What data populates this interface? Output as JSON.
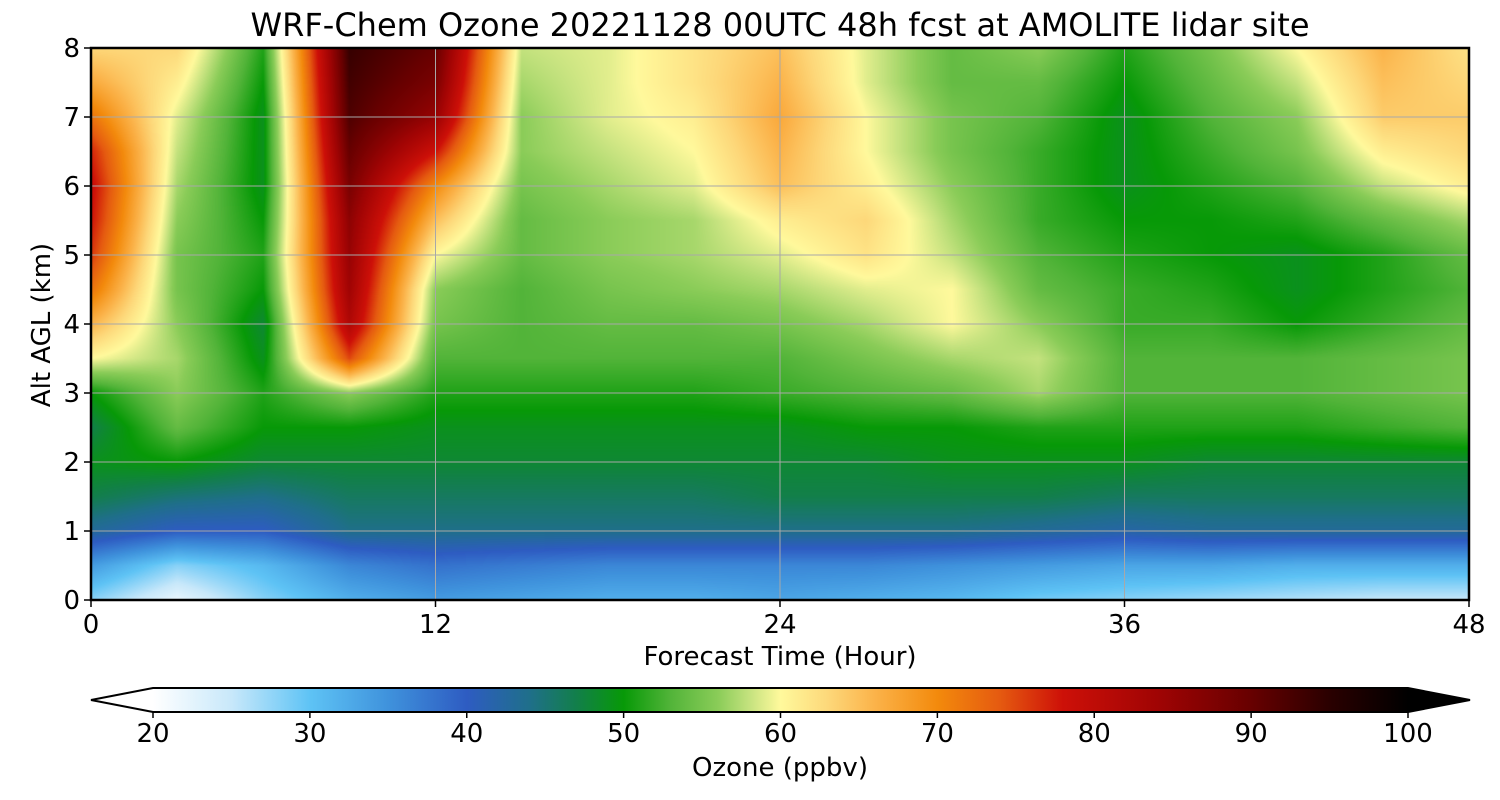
{
  "chart_data": {
    "type": "heatmap",
    "title": "WRF-Chem Ozone  20221128 00UTC 48h fcst at AMOLITE lidar site",
    "xlabel": "Forecast Time (Hour)",
    "ylabel": "Alt AGL (km)",
    "xlim": [
      0,
      48
    ],
    "ylim": [
      0,
      8
    ],
    "xticks": [
      "0",
      "12",
      "24",
      "36",
      "48"
    ],
    "yticks": [
      "0",
      "1",
      "2",
      "3",
      "4",
      "5",
      "6",
      "7",
      "8"
    ],
    "grid": true,
    "x": [
      0,
      3,
      6,
      9,
      12,
      15,
      18,
      21,
      24,
      27,
      30,
      33,
      36,
      39,
      42,
      45,
      48
    ],
    "y": [
      0,
      0.5,
      1,
      1.5,
      2,
      2.5,
      3,
      3.5,
      4,
      4.5,
      5,
      5.5,
      6,
      6.5,
      7,
      7.5,
      8
    ],
    "z": [
      [
        28,
        22,
        28,
        32,
        34,
        33,
        32,
        32,
        33,
        32,
        31,
        29,
        28,
        27,
        26,
        25,
        25
      ],
      [
        34,
        28,
        31,
        36,
        38,
        37,
        36,
        36,
        36,
        36,
        35,
        34,
        33,
        33,
        32,
        32,
        32
      ],
      [
        43,
        40,
        40,
        44,
        44,
        44,
        44,
        44,
        44,
        44,
        44,
        43,
        42,
        43,
        43,
        43,
        43
      ],
      [
        47,
        45,
        44,
        46,
        46,
        46,
        46,
        46,
        47,
        47,
        47,
        47,
        46,
        46,
        46,
        46,
        46
      ],
      [
        49,
        50,
        48,
        48,
        48,
        48,
        48,
        48,
        48,
        48,
        49,
        49,
        49,
        48,
        48,
        48,
        48
      ],
      [
        47,
        54,
        50,
        50,
        49,
        49,
        49,
        49,
        49,
        50,
        50,
        51,
        51,
        51,
        51,
        52,
        53
      ],
      [
        50,
        56,
        51,
        56,
        51,
        51,
        51,
        51,
        52,
        53,
        54,
        57,
        53,
        53,
        53,
        54,
        55
      ],
      [
        60,
        57,
        49,
        75,
        53,
        53,
        53,
        53,
        53,
        55,
        57,
        58,
        53,
        53,
        53,
        54,
        55
      ],
      [
        66,
        56,
        48,
        82,
        55,
        53,
        54,
        54,
        55,
        57,
        60,
        56,
        52,
        52,
        50,
        52,
        54
      ],
      [
        72,
        55,
        50,
        84,
        56,
        53,
        55,
        56,
        57,
        59,
        60,
        54,
        52,
        51,
        49,
        51,
        53
      ],
      [
        76,
        55,
        51,
        85,
        60,
        54,
        56,
        57,
        59,
        62,
        58,
        53,
        51,
        50,
        49,
        51,
        54
      ],
      [
        78,
        56,
        50,
        86,
        65,
        54,
        56,
        57,
        61,
        63,
        57,
        52,
        50,
        50,
        51,
        54,
        57
      ],
      [
        79,
        57,
        49,
        88,
        70,
        55,
        57,
        59,
        65,
        61,
        56,
        52,
        49,
        51,
        53,
        58,
        61
      ],
      [
        77,
        58,
        49,
        90,
        78,
        56,
        58,
        60,
        66,
        60,
        55,
        52,
        49,
        52,
        55,
        61,
        63
      ],
      [
        72,
        59,
        49,
        92,
        85,
        56,
        59,
        61,
        67,
        60,
        55,
        53,
        49,
        53,
        56,
        64,
        64
      ],
      [
        67,
        61,
        50,
        93,
        88,
        57,
        59,
        62,
        66,
        59,
        54,
        54,
        50,
        54,
        58,
        65,
        63
      ],
      [
        63,
        63,
        51,
        94,
        90,
        58,
        59,
        62,
        65,
        59,
        54,
        56,
        51,
        55,
        60,
        66,
        62
      ]
    ],
    "colorbar": {
      "label": "Ozone  (ppbv)",
      "ticks": [
        "20",
        "30",
        "40",
        "50",
        "60",
        "70",
        "80",
        "90",
        "100"
      ],
      "min": 20,
      "max": 100,
      "extend": "both",
      "stops": [
        [
          20,
          "#ffffff"
        ],
        [
          25,
          "#c8e8fa"
        ],
        [
          30,
          "#5ec3f5"
        ],
        [
          35,
          "#3f92dc"
        ],
        [
          40,
          "#2e5cc2"
        ],
        [
          44,
          "#1f6f8a"
        ],
        [
          47,
          "#127f4a"
        ],
        [
          50,
          "#079907"
        ],
        [
          53,
          "#52b439"
        ],
        [
          56,
          "#8acc58"
        ],
        [
          58,
          "#c4e27e"
        ],
        [
          60,
          "#fff99c"
        ],
        [
          63,
          "#fdd87a"
        ],
        [
          66,
          "#fbb34a"
        ],
        [
          70,
          "#f38a0c"
        ],
        [
          74,
          "#e55a10"
        ],
        [
          78,
          "#cd1008"
        ],
        [
          84,
          "#a00404"
        ],
        [
          90,
          "#670000"
        ],
        [
          95,
          "#2a0000"
        ],
        [
          100,
          "#000000"
        ]
      ]
    }
  }
}
